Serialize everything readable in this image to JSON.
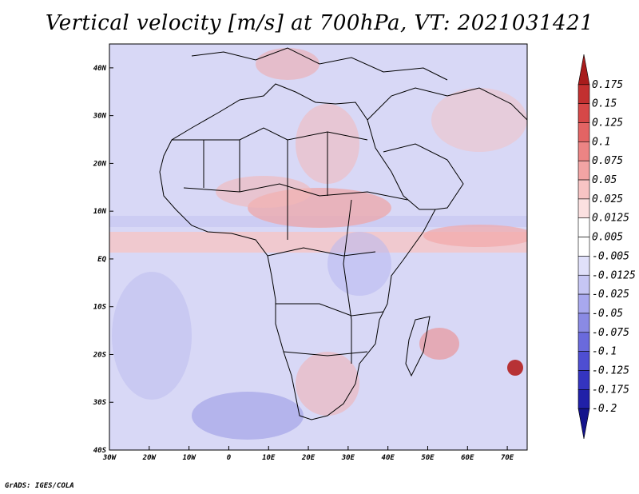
{
  "title": "Vertical velocity [m/s] at 700hPa, VT: 2021031421",
  "credit": "GrADS: IGES/COLA",
  "map": {
    "lon_range": [
      -30,
      75
    ],
    "lat_range": [
      -40,
      45
    ],
    "lon_ticks": [
      "30W",
      "20W",
      "10W",
      "0",
      "10E",
      "20E",
      "30E",
      "40E",
      "50E",
      "60E",
      "70E"
    ],
    "lat_ticks": [
      "40N",
      "30N",
      "20N",
      "10N",
      "EQ",
      "10S",
      "20S",
      "30S",
      "40S"
    ]
  },
  "colorbar": {
    "levels": [
      "0.175",
      "0.15",
      "0.125",
      "0.1",
      "0.075",
      "0.05",
      "0.025",
      "0.0125",
      "0.005",
      "-0.005",
      "-0.0125",
      "-0.025",
      "-0.05",
      "-0.075",
      "-0.1",
      "-0.125",
      "-0.175",
      "-0.2"
    ],
    "colors": [
      "#a81c1c",
      "#c23030",
      "#d64848",
      "#e36464",
      "#ec8484",
      "#f2a4a4",
      "#f7c4c4",
      "#fbe0e0",
      "#ffffff",
      "#ffffff",
      "#e0e0fa",
      "#c6c6f4",
      "#a8a8ee",
      "#8a8ae4",
      "#6a6adc",
      "#4e4ed2",
      "#3434c0",
      "#2020a8",
      "#14148c"
    ]
  }
}
